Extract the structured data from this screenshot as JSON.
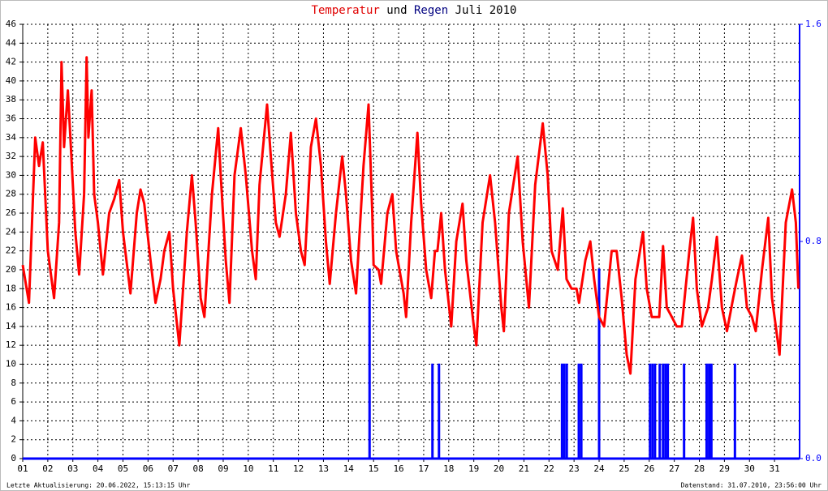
{
  "chart_data": {
    "type": "line",
    "title": [
      "und",
      "Juli 2010"
    ],
    "xlim": [
      1,
      32
    ],
    "xticks": [
      {
        "value": 1,
        "label": "01"
      },
      {
        "value": 2,
        "label": "02"
      },
      {
        "value": 3,
        "label": "03"
      },
      {
        "value": 4,
        "label": "04"
      },
      {
        "value": 5,
        "label": "05"
      },
      {
        "value": 6,
        "label": "06"
      },
      {
        "value": 7,
        "label": "07"
      },
      {
        "value": 8,
        "label": "08"
      },
      {
        "value": 9,
        "label": "09"
      },
      10,
      11,
      12,
      13,
      14,
      15,
      16,
      17,
      18,
      19,
      20,
      21,
      22,
      23,
      24,
      25,
      26,
      27,
      28,
      29,
      30,
      31
    ],
    "ylim": [
      0,
      46
    ],
    "yticks": [
      0,
      2,
      4,
      6,
      8,
      10,
      12,
      14,
      16,
      18,
      20,
      22,
      24,
      26,
      28,
      30,
      32,
      34,
      36,
      38,
      40,
      42,
      44,
      46
    ],
    "y2lim": [
      0,
      1.6
    ],
    "y2ticks": [
      {
        "value": 0,
        "label": "0.0"
      },
      0.8,
      1.6
    ],
    "grid": true,
    "series": [
      {
        "name": "Temperatur",
        "type": "line",
        "color": "#ff0000",
        "x": [
          1.0,
          1.25,
          1.5,
          1.65,
          1.8,
          2.0,
          2.25,
          2.45,
          2.55,
          2.65,
          2.8,
          2.9,
          3.1,
          3.25,
          3.45,
          3.55,
          3.62,
          3.75,
          3.85,
          4.0,
          4.2,
          4.45,
          4.65,
          4.85,
          5.0,
          5.3,
          5.55,
          5.7,
          5.85,
          6.1,
          6.3,
          6.5,
          6.65,
          6.85,
          7.0,
          7.25,
          7.55,
          7.75,
          7.9,
          8.1,
          8.25,
          8.55,
          8.8,
          8.9,
          9.1,
          9.25,
          9.45,
          9.7,
          9.9,
          10.15,
          10.3,
          10.45,
          10.75,
          10.9,
          11.1,
          11.25,
          11.5,
          11.7,
          11.9,
          12.1,
          12.25,
          12.5,
          12.7,
          12.9,
          13.1,
          13.25,
          13.5,
          13.75,
          13.9,
          14.1,
          14.3,
          14.6,
          14.8,
          14.95,
          15.0,
          15.2,
          15.3,
          15.55,
          15.75,
          15.9,
          16.2,
          16.3,
          16.5,
          16.75,
          16.9,
          17.1,
          17.3,
          17.45,
          17.55,
          17.7,
          17.85,
          18.1,
          18.3,
          18.55,
          18.7,
          19.0,
          19.1,
          19.35,
          19.65,
          19.85,
          20.1,
          20.2,
          20.4,
          20.75,
          20.95,
          21.2,
          21.45,
          21.75,
          21.95,
          22.1,
          22.35,
          22.55,
          22.7,
          22.9,
          23.1,
          23.2,
          23.45,
          23.65,
          23.8,
          24.0,
          24.2,
          24.5,
          24.7,
          24.9,
          25.1,
          25.25,
          25.45,
          25.75,
          25.9,
          26.1,
          26.4,
          26.55,
          26.7,
          26.9,
          27.1,
          27.3,
          27.45,
          27.6,
          27.75,
          27.9,
          28.1,
          28.35,
          28.5,
          28.7,
          28.9,
          29.1,
          29.35,
          29.5,
          29.7,
          29.9,
          30.1,
          30.25,
          30.5,
          30.75,
          30.9,
          31.05,
          31.2,
          31.45,
          31.7,
          31.85,
          31.95
        ],
        "values": [
          20.5,
          16.5,
          34,
          31,
          33.5,
          22,
          17,
          25,
          42,
          33,
          39,
          34,
          24,
          19.5,
          28,
          42.5,
          34,
          39,
          28,
          25,
          19.5,
          26,
          27.5,
          29.5,
          24,
          17.5,
          26,
          28.5,
          27,
          21,
          16.5,
          19,
          22,
          24,
          18,
          12,
          24,
          30,
          25,
          17,
          15,
          28,
          35,
          30,
          21,
          16.5,
          30,
          35,
          30,
          22,
          19,
          29,
          37.5,
          32,
          25,
          23.5,
          28,
          34.5,
          26,
          22,
          20.5,
          33,
          36,
          31,
          23,
          18.5,
          26,
          32,
          28,
          21,
          17.5,
          31,
          37.5,
          26,
          20.5,
          20,
          18.5,
          26,
          28,
          22,
          17.5,
          15,
          25,
          34.5,
          27,
          20,
          17,
          22,
          22,
          26,
          20,
          14,
          23,
          27,
          21,
          14,
          12,
          25,
          30,
          25,
          16,
          13.5,
          26,
          32,
          23,
          16,
          29,
          35.5,
          30,
          22,
          20,
          26.5,
          19,
          18,
          18,
          16.5,
          21,
          23,
          19,
          15,
          14,
          22,
          22,
          17,
          11,
          9,
          19,
          24,
          18,
          15,
          15,
          22.5,
          16,
          15,
          14,
          14,
          18,
          22,
          25.5,
          18,
          14,
          16,
          19,
          23.5,
          16,
          13.5,
          17,
          19,
          21.5,
          16,
          15,
          13.5,
          20,
          25.5,
          17,
          14,
          11,
          25,
          28.5,
          25,
          18
        ]
      },
      {
        "name": "Regen",
        "type": "bar",
        "axis": "y2",
        "color": "#0000ff",
        "x": [
          14.84,
          17.35,
          17.61,
          22.52,
          22.61,
          22.71,
          23.19,
          23.29,
          24.0,
          26.03,
          26.13,
          26.23,
          26.42,
          26.55,
          26.65,
          26.74,
          27.39,
          28.29,
          28.39,
          28.48,
          29.42
        ],
        "values": [
          0.7,
          0.35,
          0.35,
          0.35,
          0.35,
          0.35,
          0.35,
          0.35,
          0.7,
          0.35,
          0.35,
          0.35,
          0.35,
          0.35,
          0.35,
          0.35,
          0.35,
          0.35,
          0.35,
          0.35,
          0.35
        ]
      }
    ]
  },
  "footer": {
    "left": "Letzte Aktualisierung: 20.06.2022, 15:13:15 Uhr",
    "right": "Datenstand: 31.07.2010, 23:56:00 Uhr"
  }
}
